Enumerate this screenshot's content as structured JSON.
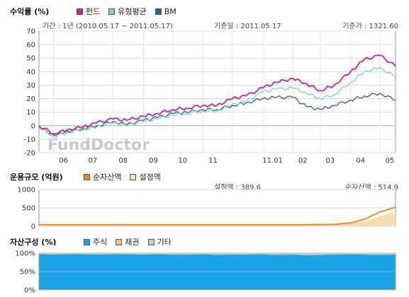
{
  "returns": {
    "title": "수익률 (%)",
    "legend": [
      {
        "label": "펀드",
        "color": "#d0208f"
      },
      {
        "label": "유형평균",
        "color": "#7dd3c0"
      },
      {
        "label": "BM",
        "color": "#2a5d9a"
      }
    ],
    "period": "기간 : 1년 (2010.05.17 ~ 2011.05.17)",
    "base_date": "기준일 : 2011.05.17",
    "base_price": "기준가 : 1321.60",
    "watermark": "FundDoctor"
  },
  "aum": {
    "title": "운용규모 (억원)",
    "legend": [
      {
        "label": "순자산액",
        "color": "#f08a20"
      },
      {
        "label": "설정액",
        "color": "#f5deb0"
      }
    ],
    "setting": "설정액 : 389.6",
    "net_asset": "순자산액 : 514.9"
  },
  "allocation": {
    "title": "자산구성 (%)",
    "legend": [
      {
        "label": "주식",
        "color": "#1aa3e6"
      },
      {
        "label": "채권",
        "color": "#f2be8a"
      },
      {
        "label": "기타",
        "color": "#c8c8c8"
      }
    ]
  },
  "chart_data": [
    {
      "type": "line",
      "title": "수익률 (%)",
      "ylim": [
        -20,
        70
      ],
      "yticks": [
        -20,
        -10,
        0,
        10,
        20,
        30,
        40,
        50,
        60,
        70
      ],
      "grid": true,
      "x_months": [
        "06",
        "07",
        "08",
        "09",
        "10",
        "11",
        "11.01",
        "02",
        "03",
        "04",
        "05"
      ],
      "x": [
        "2010-05-17",
        "2010-06-01",
        "2010-06-15",
        "2010-07-01",
        "2010-07-15",
        "2010-08-01",
        "2010-08-15",
        "2010-09-01",
        "2010-09-15",
        "2010-10-01",
        "2010-10-15",
        "2010-11-01",
        "2010-11-15",
        "2010-12-01",
        "2010-12-15",
        "2011-01-01",
        "2011-01-15",
        "2011-02-01",
        "2011-02-15",
        "2011-03-01",
        "2011-03-15",
        "2011-04-01",
        "2011-04-15",
        "2011-05-01",
        "2011-05-17"
      ],
      "series": [
        {
          "name": "펀드",
          "color": "#d0208f",
          "values": [
            0,
            -6,
            -3,
            -1,
            2,
            5,
            4,
            7,
            9,
            12,
            13,
            15,
            15,
            20,
            22,
            28,
            32,
            35,
            31,
            26,
            30,
            40,
            49,
            52,
            44
          ]
        },
        {
          "name": "유형평균",
          "color": "#7dd3c0",
          "values": [
            -1,
            -8,
            -5,
            -3,
            -1,
            2,
            0,
            3,
            5,
            8,
            9,
            11,
            11,
            16,
            18,
            25,
            27,
            28,
            24,
            20,
            23,
            32,
            40,
            43,
            36
          ]
        },
        {
          "name": "BM",
          "color": "#2a5d9a",
          "values": [
            -1,
            -7,
            -4,
            -2,
            0,
            3,
            1,
            4,
            6,
            9,
            10,
            12,
            12,
            15,
            17,
            20,
            21,
            21,
            14,
            12,
            15,
            19,
            22,
            24,
            19
          ]
        }
      ]
    },
    {
      "type": "area",
      "title": "운용규모 (억원)",
      "ylim": [
        0,
        1000
      ],
      "yticks": [
        0,
        500,
        1000
      ],
      "x": [
        "2010-05-17",
        "2010-07-01",
        "2010-09-01",
        "2010-11-01",
        "2011-01-01",
        "2011-02-15",
        "2011-03-15",
        "2011-04-01",
        "2011-04-15",
        "2011-05-01",
        "2011-05-17"
      ],
      "series": [
        {
          "name": "순자산액",
          "color": "#f08a20",
          "values": [
            45,
            45,
            45,
            45,
            45,
            45,
            50,
            90,
            190,
            390,
            514.9
          ]
        },
        {
          "name": "설정액",
          "color": "#f5deb0",
          "values": [
            45,
            45,
            45,
            45,
            45,
            45,
            48,
            70,
            130,
            280,
            389.6
          ]
        }
      ]
    },
    {
      "type": "area",
      "title": "자산구성 (%)",
      "ylim": [
        0,
        100
      ],
      "yticks": [
        0,
        50,
        100
      ],
      "series": [
        {
          "name": "주식",
          "color": "#1aa3e6",
          "values": [
            97,
            96,
            97,
            97,
            96,
            97,
            97,
            96,
            97,
            96,
            96,
            97,
            95,
            96,
            96,
            97,
            95,
            96,
            94,
            95,
            96,
            97,
            96,
            95,
            96
          ]
        },
        {
          "name": "채권",
          "color": "#f2be8a",
          "values": [
            2,
            2,
            2,
            2,
            2,
            2,
            2,
            2,
            2,
            2,
            2,
            2,
            2,
            2,
            2,
            2,
            2,
            2,
            2,
            2,
            2,
            2,
            2,
            2,
            2
          ]
        },
        {
          "name": "기타",
          "color": "#c8c8c8",
          "values": [
            1,
            2,
            1,
            1,
            2,
            1,
            1,
            2,
            1,
            2,
            2,
            1,
            3,
            2,
            2,
            1,
            3,
            2,
            4,
            3,
            2,
            1,
            2,
            3,
            2
          ]
        }
      ]
    }
  ]
}
